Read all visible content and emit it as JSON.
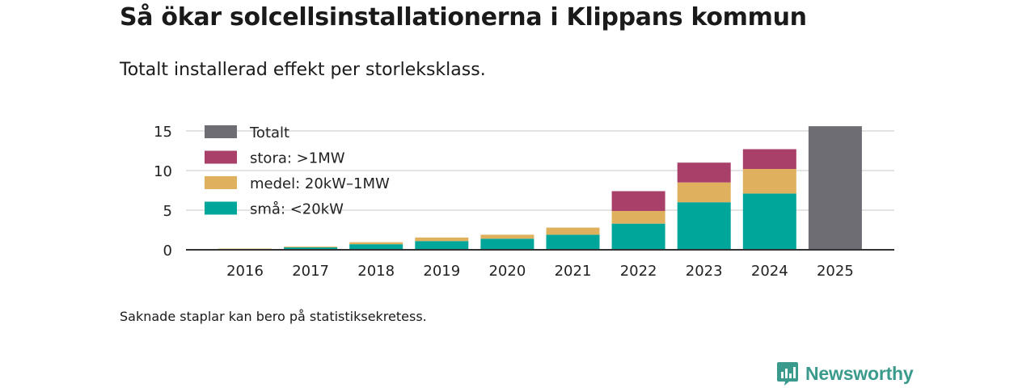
{
  "header": {
    "title": "Så ökar solcellsinstallationerna i Klippans kommun",
    "subtitle": "Totalt installerad effekt per storleksklass."
  },
  "footer": {
    "note": "Saknade staplar kan bero på statistiksekretess.",
    "brand": "Newsworthy"
  },
  "colors": {
    "sma": "#00a699",
    "medel": "#dfb05e",
    "stora": "#a84069",
    "totalt": "#6e6d73",
    "grid": "#dcdcdc",
    "axis": "#333333",
    "brand": "#3a9a8c"
  },
  "chart_data": {
    "type": "bar",
    "stacked": true,
    "title": "Så ökar solcellsinstallationerna i Klippans kommun",
    "subtitle": "Totalt installerad effekt per storleksklass.",
    "xlabel": "",
    "ylabel": "",
    "ylim": [
      0,
      16
    ],
    "yticks": [
      0,
      5,
      10,
      15
    ],
    "grid": true,
    "legend_position": "top-left",
    "categories": [
      "2016",
      "2017",
      "2018",
      "2019",
      "2020",
      "2021",
      "2022",
      "2023",
      "2024",
      "2025"
    ],
    "legend": [
      {
        "key": "totalt",
        "label": "Totalt"
      },
      {
        "key": "stora",
        "label": "stora: >1MW"
      },
      {
        "key": "medel",
        "label": "medel: 20kW–1MW"
      },
      {
        "key": "sma",
        "label": "små: <20kW"
      }
    ],
    "series": [
      {
        "key": "sma",
        "name": "små: <20kW",
        "values": [
          0.1,
          0.3,
          0.7,
          1.1,
          1.4,
          1.9,
          3.3,
          6.0,
          7.1,
          null
        ]
      },
      {
        "key": "medel",
        "name": "medel: 20kW–1MW",
        "values": [
          0.05,
          0.1,
          0.25,
          0.45,
          0.5,
          0.9,
          1.6,
          2.5,
          3.1,
          null
        ]
      },
      {
        "key": "stora",
        "name": "stora: >1MW",
        "values": [
          0,
          0,
          0,
          0,
          0,
          0,
          2.5,
          2.5,
          2.5,
          null
        ]
      },
      {
        "key": "totalt",
        "name": "Totalt",
        "values": [
          null,
          null,
          null,
          null,
          null,
          null,
          null,
          null,
          null,
          15.6
        ]
      }
    ]
  }
}
